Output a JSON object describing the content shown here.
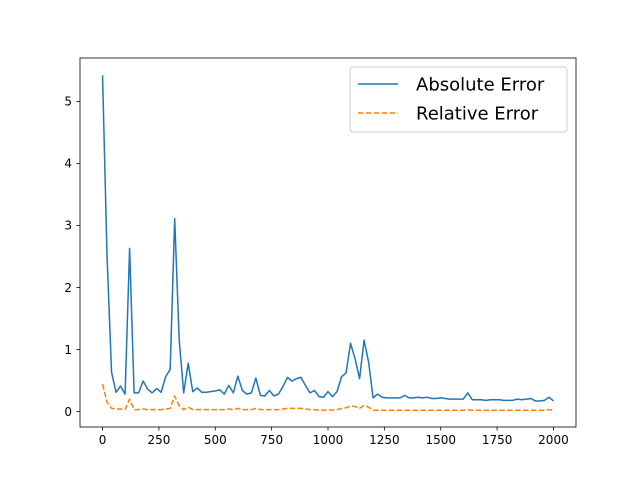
{
  "chart_data": {
    "type": "line",
    "title": "",
    "xlabel": "",
    "ylabel": "",
    "xlim": [
      -100,
      2100
    ],
    "ylim": [
      -0.25,
      5.7
    ],
    "xticks": [
      0,
      250,
      500,
      750,
      1000,
      1250,
      1500,
      1750,
      2000
    ],
    "yticks": [
      0,
      1,
      2,
      3,
      4,
      5
    ],
    "grid": false,
    "legend_position": "top-right",
    "series": [
      {
        "name": "Absolute Error",
        "color": "#1f77b4",
        "dash": "solid",
        "x": [
          0,
          20,
          40,
          60,
          80,
          100,
          120,
          140,
          160,
          180,
          200,
          220,
          240,
          260,
          280,
          300,
          320,
          340,
          360,
          380,
          400,
          420,
          440,
          460,
          480,
          500,
          520,
          540,
          560,
          580,
          600,
          620,
          640,
          660,
          680,
          700,
          720,
          740,
          760,
          780,
          800,
          820,
          840,
          860,
          880,
          900,
          920,
          940,
          960,
          980,
          1000,
          1020,
          1040,
          1060,
          1080,
          1100,
          1120,
          1140,
          1160,
          1180,
          1200,
          1220,
          1240,
          1260,
          1280,
          1300,
          1320,
          1340,
          1360,
          1380,
          1400,
          1420,
          1440,
          1460,
          1480,
          1500,
          1520,
          1540,
          1560,
          1580,
          1600,
          1620,
          1640,
          1660,
          1680,
          1700,
          1720,
          1740,
          1760,
          1780,
          1800,
          1820,
          1840,
          1860,
          1880,
          1900,
          1920,
          1940,
          1960,
          1980,
          2000
        ],
        "y": [
          5.42,
          2.5,
          0.63,
          0.31,
          0.41,
          0.28,
          2.63,
          0.3,
          0.3,
          0.49,
          0.36,
          0.3,
          0.37,
          0.31,
          0.56,
          0.68,
          3.11,
          1.15,
          0.3,
          0.78,
          0.32,
          0.38,
          0.31,
          0.31,
          0.32,
          0.33,
          0.35,
          0.28,
          0.42,
          0.3,
          0.57,
          0.34,
          0.28,
          0.3,
          0.54,
          0.26,
          0.25,
          0.34,
          0.25,
          0.28,
          0.4,
          0.55,
          0.49,
          0.53,
          0.55,
          0.42,
          0.3,
          0.34,
          0.24,
          0.23,
          0.32,
          0.24,
          0.32,
          0.56,
          0.62,
          1.1,
          0.85,
          0.53,
          1.15,
          0.8,
          0.22,
          0.28,
          0.23,
          0.22,
          0.22,
          0.22,
          0.22,
          0.26,
          0.22,
          0.22,
          0.23,
          0.22,
          0.23,
          0.21,
          0.21,
          0.22,
          0.21,
          0.2,
          0.2,
          0.2,
          0.2,
          0.3,
          0.19,
          0.19,
          0.19,
          0.18,
          0.19,
          0.19,
          0.19,
          0.18,
          0.18,
          0.18,
          0.2,
          0.19,
          0.2,
          0.21,
          0.17,
          0.17,
          0.18,
          0.23,
          0.17
        ]
      },
      {
        "name": "Relative Error",
        "color": "#ff7f0e",
        "dash": "dashed",
        "x": [
          0,
          20,
          40,
          60,
          80,
          100,
          120,
          140,
          160,
          180,
          200,
          220,
          240,
          260,
          280,
          300,
          320,
          340,
          360,
          380,
          400,
          420,
          440,
          460,
          480,
          500,
          520,
          540,
          560,
          580,
          600,
          620,
          640,
          660,
          680,
          700,
          720,
          740,
          760,
          780,
          800,
          820,
          840,
          860,
          880,
          900,
          920,
          940,
          960,
          980,
          1000,
          1020,
          1040,
          1060,
          1080,
          1100,
          1120,
          1140,
          1160,
          1180,
          1200,
          1220,
          1240,
          1260,
          1280,
          1300,
          1320,
          1340,
          1360,
          1380,
          1400,
          1420,
          1440,
          1460,
          1480,
          1500,
          1520,
          1540,
          1560,
          1580,
          1600,
          1620,
          1640,
          1660,
          1680,
          1700,
          1720,
          1740,
          1760,
          1780,
          1800,
          1820,
          1840,
          1860,
          1880,
          1900,
          1920,
          1940,
          1960,
          1980,
          2000
        ],
        "y": [
          0.44,
          0.15,
          0.05,
          0.04,
          0.04,
          0.03,
          0.2,
          0.03,
          0.03,
          0.04,
          0.03,
          0.03,
          0.03,
          0.03,
          0.04,
          0.05,
          0.25,
          0.09,
          0.03,
          0.07,
          0.03,
          0.03,
          0.03,
          0.03,
          0.03,
          0.03,
          0.03,
          0.03,
          0.04,
          0.03,
          0.05,
          0.03,
          0.03,
          0.03,
          0.05,
          0.03,
          0.03,
          0.03,
          0.03,
          0.03,
          0.04,
          0.05,
          0.05,
          0.05,
          0.05,
          0.04,
          0.03,
          0.03,
          0.02,
          0.02,
          0.03,
          0.02,
          0.03,
          0.05,
          0.06,
          0.09,
          0.08,
          0.05,
          0.1,
          0.07,
          0.02,
          0.02,
          0.02,
          0.02,
          0.02,
          0.02,
          0.02,
          0.02,
          0.02,
          0.02,
          0.02,
          0.02,
          0.02,
          0.02,
          0.02,
          0.02,
          0.02,
          0.02,
          0.02,
          0.02,
          0.02,
          0.03,
          0.02,
          0.02,
          0.02,
          0.02,
          0.02,
          0.02,
          0.02,
          0.02,
          0.02,
          0.02,
          0.02,
          0.02,
          0.02,
          0.02,
          0.02,
          0.02,
          0.02,
          0.03,
          0.02
        ]
      }
    ]
  }
}
